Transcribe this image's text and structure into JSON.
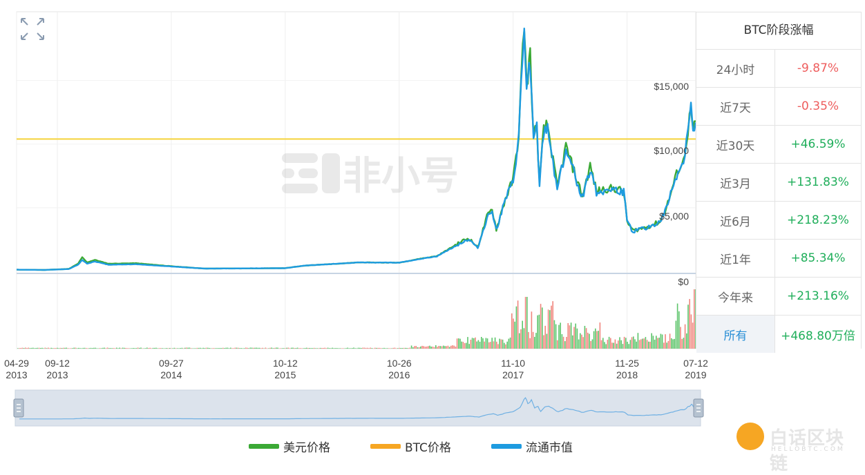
{
  "watermark": "非小号",
  "gain_panel": {
    "title": "BTC阶段涨幅",
    "rows": [
      {
        "label": "24小时",
        "value": "-9.87%",
        "color": "#ee5d5d"
      },
      {
        "label": "近7天",
        "value": "-0.35%",
        "color": "#ee5d5d"
      },
      {
        "label": "近30天",
        "value": "+46.59%",
        "color": "#1fae5a"
      },
      {
        "label": "近3月",
        "value": "+131.83%",
        "color": "#1fae5a"
      },
      {
        "label": "近6月",
        "value": "+218.23%",
        "color": "#1fae5a"
      },
      {
        "label": "近1年",
        "value": "+85.34%",
        "color": "#1fae5a"
      },
      {
        "label": "今年来",
        "value": "+213.16%",
        "color": "#1fae5a"
      },
      {
        "label": "所有",
        "value": "+468.80万倍",
        "color": "#1fae5a",
        "active": true
      }
    ]
  },
  "legend": [
    {
      "label": "美元价格",
      "color": "#3ba935"
    },
    {
      "label": "BTC价格",
      "color": "#f6a623"
    },
    {
      "label": "流通市值",
      "color": "#1e9be0"
    }
  ],
  "logo": {
    "text": "白话区块链",
    "sub": "HELLOBTC.COM"
  },
  "chart_data": {
    "type": "line",
    "x_tick_labels": [
      {
        "date": "2013-04-29",
        "label": [
          "04-29",
          "2013"
        ]
      },
      {
        "date": "2013-09-12",
        "label": [
          "09-12",
          "2013"
        ]
      },
      {
        "date": "2014-09-27",
        "label": [
          "09-27",
          "2014"
        ]
      },
      {
        "date": "2015-10-12",
        "label": [
          "10-12",
          "2015"
        ]
      },
      {
        "date": "2016-10-26",
        "label": [
          "10-26",
          "2016"
        ]
      },
      {
        "date": "2017-11-10",
        "label": [
          "11-10",
          "2017"
        ]
      },
      {
        "date": "2018-11-25",
        "label": [
          "11-25",
          "2018"
        ]
      },
      {
        "date": "2019-07-12",
        "label": [
          "07-12",
          "2019"
        ]
      }
    ],
    "y_ticks": [
      0,
      5000,
      10000,
      15000
    ],
    "y_tick_labels": [
      "$0",
      "$5,000",
      "$10,000",
      "$15,000"
    ],
    "ylim": [
      0,
      20000
    ],
    "btc_price_line": 10400,
    "series": [
      {
        "name": "美元价格",
        "color": "#3ba935",
        "points": [
          [
            "2013-04-29",
            130
          ],
          [
            "2013-08-01",
            110
          ],
          [
            "2013-10-20",
            190
          ],
          [
            "2013-11-20",
            600
          ],
          [
            "2013-12-04",
            1100
          ],
          [
            "2013-12-20",
            700
          ],
          [
            "2014-01-15",
            900
          ],
          [
            "2014-03-01",
            600
          ],
          [
            "2014-06-01",
            640
          ],
          [
            "2014-09-27",
            400
          ],
          [
            "2015-01-15",
            220
          ],
          [
            "2015-06-01",
            230
          ],
          [
            "2015-10-12",
            250
          ],
          [
            "2015-12-15",
            450
          ],
          [
            "2016-06-15",
            700
          ],
          [
            "2016-10-26",
            680
          ],
          [
            "2017-01-05",
            1000
          ],
          [
            "2017-03-01",
            1200
          ],
          [
            "2017-05-25",
            2400
          ],
          [
            "2017-06-15",
            2600
          ],
          [
            "2017-07-15",
            1900
          ],
          [
            "2017-08-15",
            4300
          ],
          [
            "2017-09-01",
            4900
          ],
          [
            "2017-09-15",
            3300
          ],
          [
            "2017-10-15",
            5700
          ],
          [
            "2017-11-10",
            7200
          ],
          [
            "2017-11-29",
            10800
          ],
          [
            "2017-12-07",
            15000
          ],
          [
            "2017-12-17",
            19700
          ],
          [
            "2017-12-25",
            14500
          ],
          [
            "2018-01-06",
            17200
          ],
          [
            "2018-01-17",
            10500
          ],
          [
            "2018-01-28",
            11500
          ],
          [
            "2018-02-06",
            6900
          ],
          [
            "2018-02-20",
            11100
          ],
          [
            "2018-03-05",
            11500
          ],
          [
            "2018-04-06",
            6600
          ],
          [
            "2018-05-05",
            9800
          ],
          [
            "2018-06-29",
            5900
          ],
          [
            "2018-07-25",
            8300
          ],
          [
            "2018-08-15",
            6300
          ],
          [
            "2018-09-15",
            6500
          ],
          [
            "2018-10-15",
            6500
          ],
          [
            "2018-11-14",
            6300
          ],
          [
            "2018-11-25",
            3900
          ],
          [
            "2018-12-15",
            3200
          ],
          [
            "2019-02-01",
            3500
          ],
          [
            "2019-03-15",
            3900
          ],
          [
            "2019-04-05",
            5000
          ],
          [
            "2019-05-14",
            8000
          ],
          [
            "2019-06-01",
            8600
          ],
          [
            "2019-06-26",
            12800
          ],
          [
            "2019-07-03",
            10800
          ],
          [
            "2019-07-12",
            11800
          ]
        ]
      },
      {
        "name": "流通市值",
        "color": "#1e9be0",
        "points": [
          [
            "2013-04-29",
            130
          ],
          [
            "2013-08-01",
            110
          ],
          [
            "2013-10-20",
            180
          ],
          [
            "2013-11-20",
            520
          ],
          [
            "2013-12-04",
            900
          ],
          [
            "2013-12-20",
            600
          ],
          [
            "2014-01-15",
            780
          ],
          [
            "2014-03-01",
            520
          ],
          [
            "2014-06-01",
            560
          ],
          [
            "2014-09-27",
            380
          ],
          [
            "2015-01-15",
            220
          ],
          [
            "2015-06-01",
            230
          ],
          [
            "2015-10-12",
            250
          ],
          [
            "2015-12-15",
            450
          ],
          [
            "2016-06-15",
            700
          ],
          [
            "2016-10-26",
            680
          ],
          [
            "2017-01-05",
            980
          ],
          [
            "2017-03-01",
            1180
          ],
          [
            "2017-05-25",
            2300
          ],
          [
            "2017-06-15",
            2500
          ],
          [
            "2017-07-15",
            1850
          ],
          [
            "2017-08-15",
            4200
          ],
          [
            "2017-09-01",
            4800
          ],
          [
            "2017-09-15",
            3250
          ],
          [
            "2017-10-15",
            5600
          ],
          [
            "2017-11-10",
            7000
          ],
          [
            "2017-11-29",
            10500
          ],
          [
            "2017-12-07",
            14700
          ],
          [
            "2017-12-17",
            18900
          ],
          [
            "2017-12-25",
            14000
          ],
          [
            "2018-01-06",
            16600
          ],
          [
            "2018-01-17",
            10200
          ],
          [
            "2018-01-28",
            11200
          ],
          [
            "2018-02-06",
            6800
          ],
          [
            "2018-02-20",
            10900
          ],
          [
            "2018-03-05",
            11300
          ],
          [
            "2018-04-06",
            6500
          ],
          [
            "2018-05-05",
            9600
          ],
          [
            "2018-06-29",
            5800
          ],
          [
            "2018-07-25",
            8100
          ],
          [
            "2018-08-15",
            6200
          ],
          [
            "2018-09-15",
            6400
          ],
          [
            "2018-10-15",
            6400
          ],
          [
            "2018-11-14",
            6200
          ],
          [
            "2018-11-25",
            3850
          ],
          [
            "2018-12-15",
            3150
          ],
          [
            "2019-02-01",
            3450
          ],
          [
            "2019-03-15",
            3850
          ],
          [
            "2019-04-05",
            4950
          ],
          [
            "2019-05-14",
            7900
          ],
          [
            "2019-06-01",
            8500
          ],
          [
            "2019-06-26",
            13000
          ],
          [
            "2019-07-03",
            10700
          ],
          [
            "2019-07-12",
            11700
          ]
        ]
      }
    ],
    "volume_note": "green/red daily volume bars, near zero until 2017, peaking late 2017 and at 2019-06"
  }
}
